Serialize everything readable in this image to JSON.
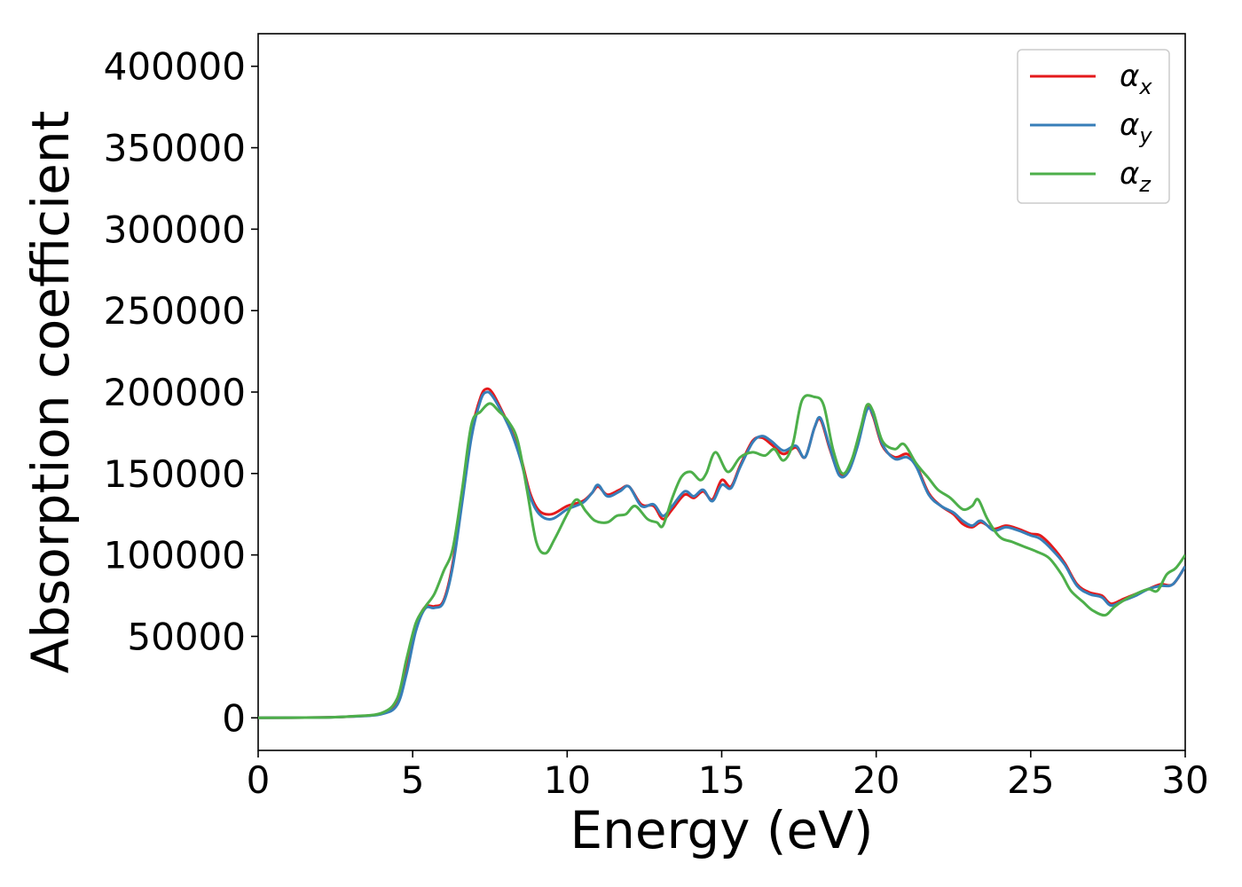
{
  "chart_data": {
    "type": "line",
    "title": "",
    "xlabel": "Energy (eV)",
    "ylabel": "Absorption coefficient",
    "xlim": [
      0,
      30
    ],
    "ylim": [
      -20000,
      420000
    ],
    "xticks": [
      0,
      5,
      10,
      15,
      20,
      25,
      30
    ],
    "yticks": [
      0,
      50000,
      100000,
      150000,
      200000,
      250000,
      300000,
      350000,
      400000
    ],
    "grid": false,
    "legend_position": "top-right",
    "series": [
      {
        "name": "α",
        "subscript": "x",
        "color": "#e41a1c",
        "points": [
          [
            0,
            0
          ],
          [
            2,
            200
          ],
          [
            3,
            800
          ],
          [
            4,
            2500
          ],
          [
            4.5,
            9000
          ],
          [
            4.8,
            30000
          ],
          [
            5.1,
            56000
          ],
          [
            5.4,
            68000
          ],
          [
            5.7,
            68500
          ],
          [
            6.0,
            72000
          ],
          [
            6.3,
            95000
          ],
          [
            6.6,
            135000
          ],
          [
            6.9,
            175000
          ],
          [
            7.2,
            197000
          ],
          [
            7.4,
            202000
          ],
          [
            7.6,
            199000
          ],
          [
            7.9,
            188000
          ],
          [
            8.2,
            176000
          ],
          [
            8.5,
            160000
          ],
          [
            8.8,
            138000
          ],
          [
            9.1,
            127000
          ],
          [
            9.5,
            125000
          ],
          [
            10.0,
            130000
          ],
          [
            10.5,
            133000
          ],
          [
            10.8,
            138000
          ],
          [
            11.0,
            142000
          ],
          [
            11.3,
            137000
          ],
          [
            11.7,
            140000
          ],
          [
            12.0,
            142000
          ],
          [
            12.4,
            131000
          ],
          [
            12.8,
            130000
          ],
          [
            13.1,
            122000
          ],
          [
            13.4,
            128000
          ],
          [
            13.8,
            137000
          ],
          [
            14.1,
            135000
          ],
          [
            14.4,
            139000
          ],
          [
            14.7,
            134000
          ],
          [
            15.0,
            146000
          ],
          [
            15.3,
            142000
          ],
          [
            15.6,
            155000
          ],
          [
            16.0,
            170000
          ],
          [
            16.3,
            172000
          ],
          [
            16.6,
            168000
          ],
          [
            17.0,
            162000
          ],
          [
            17.4,
            166000
          ],
          [
            17.7,
            160000
          ],
          [
            18.0,
            178000
          ],
          [
            18.2,
            183000
          ],
          [
            18.5,
            165000
          ],
          [
            18.8,
            150000
          ],
          [
            19.1,
            152000
          ],
          [
            19.4,
            168000
          ],
          [
            19.7,
            190000
          ],
          [
            19.9,
            185000
          ],
          [
            20.2,
            167000
          ],
          [
            20.6,
            160000
          ],
          [
            21.0,
            162000
          ],
          [
            21.3,
            155000
          ],
          [
            21.7,
            138000
          ],
          [
            22.1,
            130000
          ],
          [
            22.5,
            125000
          ],
          [
            22.8,
            119000
          ],
          [
            23.1,
            117000
          ],
          [
            23.4,
            120000
          ],
          [
            23.8,
            116000
          ],
          [
            24.2,
            118000
          ],
          [
            24.6,
            116000
          ],
          [
            25.0,
            113000
          ],
          [
            25.3,
            112000
          ],
          [
            25.7,
            105000
          ],
          [
            26.1,
            95000
          ],
          [
            26.5,
            82000
          ],
          [
            26.9,
            77000
          ],
          [
            27.3,
            75000
          ],
          [
            27.6,
            70000
          ],
          [
            28.0,
            73000
          ],
          [
            28.4,
            76000
          ],
          [
            28.8,
            79000
          ],
          [
            29.2,
            82000
          ],
          [
            29.6,
            82000
          ],
          [
            30.0,
            93000
          ]
        ]
      },
      {
        "name": "α",
        "subscript": "y",
        "color": "#377eb8",
        "points": [
          [
            0,
            0
          ],
          [
            2,
            200
          ],
          [
            3,
            800
          ],
          [
            4,
            2300
          ],
          [
            4.5,
            8000
          ],
          [
            4.8,
            27000
          ],
          [
            5.1,
            53000
          ],
          [
            5.4,
            67000
          ],
          [
            5.7,
            67500
          ],
          [
            6.0,
            71000
          ],
          [
            6.3,
            93000
          ],
          [
            6.6,
            132000
          ],
          [
            6.9,
            172000
          ],
          [
            7.2,
            195000
          ],
          [
            7.4,
            200000
          ],
          [
            7.6,
            197000
          ],
          [
            7.9,
            187000
          ],
          [
            8.2,
            175000
          ],
          [
            8.5,
            158000
          ],
          [
            8.8,
            136000
          ],
          [
            9.1,
            125000
          ],
          [
            9.5,
            122000
          ],
          [
            10.0,
            128000
          ],
          [
            10.5,
            132000
          ],
          [
            10.8,
            138000
          ],
          [
            11.0,
            143000
          ],
          [
            11.3,
            136000
          ],
          [
            11.7,
            139000
          ],
          [
            12.0,
            142000
          ],
          [
            12.4,
            130000
          ],
          [
            12.8,
            131000
          ],
          [
            13.1,
            124000
          ],
          [
            13.4,
            130000
          ],
          [
            13.8,
            139000
          ],
          [
            14.1,
            136000
          ],
          [
            14.4,
            140000
          ],
          [
            14.7,
            133000
          ],
          [
            15.0,
            143000
          ],
          [
            15.3,
            141000
          ],
          [
            15.6,
            154000
          ],
          [
            16.0,
            169000
          ],
          [
            16.3,
            173000
          ],
          [
            16.6,
            170000
          ],
          [
            17.0,
            164000
          ],
          [
            17.4,
            167000
          ],
          [
            17.7,
            160000
          ],
          [
            18.0,
            178000
          ],
          [
            18.2,
            184000
          ],
          [
            18.5,
            166000
          ],
          [
            18.8,
            149000
          ],
          [
            19.1,
            151000
          ],
          [
            19.4,
            167000
          ],
          [
            19.7,
            189000
          ],
          [
            19.9,
            186000
          ],
          [
            20.2,
            168000
          ],
          [
            20.6,
            159000
          ],
          [
            21.0,
            160000
          ],
          [
            21.3,
            154000
          ],
          [
            21.7,
            137000
          ],
          [
            22.1,
            130000
          ],
          [
            22.5,
            126000
          ],
          [
            22.8,
            121000
          ],
          [
            23.1,
            118000
          ],
          [
            23.4,
            121000
          ],
          [
            23.8,
            115000
          ],
          [
            24.2,
            117000
          ],
          [
            24.6,
            115000
          ],
          [
            25.0,
            112000
          ],
          [
            25.3,
            110000
          ],
          [
            25.7,
            103000
          ],
          [
            26.1,
            94000
          ],
          [
            26.5,
            81000
          ],
          [
            26.9,
            76000
          ],
          [
            27.3,
            74000
          ],
          [
            27.6,
            69000
          ],
          [
            28.0,
            72000
          ],
          [
            28.4,
            75000
          ],
          [
            28.8,
            79000
          ],
          [
            29.2,
            81000
          ],
          [
            29.6,
            82000
          ],
          [
            30.0,
            93000
          ]
        ]
      },
      {
        "name": "α",
        "subscript": "z",
        "color": "#4daf4a",
        "points": [
          [
            0,
            0
          ],
          [
            2,
            200
          ],
          [
            3,
            900
          ],
          [
            4,
            3000
          ],
          [
            4.5,
            12000
          ],
          [
            4.8,
            36000
          ],
          [
            5.1,
            58000
          ],
          [
            5.4,
            68000
          ],
          [
            5.7,
            76000
          ],
          [
            6.0,
            90000
          ],
          [
            6.3,
            104000
          ],
          [
            6.6,
            140000
          ],
          [
            6.9,
            180000
          ],
          [
            7.2,
            188000
          ],
          [
            7.5,
            193000
          ],
          [
            7.8,
            188000
          ],
          [
            8.1,
            182000
          ],
          [
            8.4,
            170000
          ],
          [
            8.7,
            140000
          ],
          [
            9.0,
            108000
          ],
          [
            9.3,
            101000
          ],
          [
            9.6,
            110000
          ],
          [
            10.0,
            125000
          ],
          [
            10.3,
            134000
          ],
          [
            10.6,
            127000
          ],
          [
            10.9,
            121000
          ],
          [
            11.3,
            120000
          ],
          [
            11.6,
            124000
          ],
          [
            11.9,
            125000
          ],
          [
            12.2,
            130000
          ],
          [
            12.6,
            122000
          ],
          [
            12.9,
            120000
          ],
          [
            13.1,
            118000
          ],
          [
            13.4,
            135000
          ],
          [
            13.7,
            148000
          ],
          [
            14.0,
            151000
          ],
          [
            14.3,
            146000
          ],
          [
            14.5,
            150000
          ],
          [
            14.8,
            163000
          ],
          [
            15.2,
            151000
          ],
          [
            15.6,
            160000
          ],
          [
            16.0,
            163000
          ],
          [
            16.4,
            161000
          ],
          [
            16.7,
            165000
          ],
          [
            17.0,
            158000
          ],
          [
            17.3,
            168000
          ],
          [
            17.6,
            195000
          ],
          [
            18.0,
            197000
          ],
          [
            18.3,
            192000
          ],
          [
            18.6,
            165000
          ],
          [
            18.9,
            150000
          ],
          [
            19.2,
            158000
          ],
          [
            19.5,
            178000
          ],
          [
            19.7,
            192000
          ],
          [
            19.9,
            188000
          ],
          [
            20.2,
            170000
          ],
          [
            20.6,
            165000
          ],
          [
            20.9,
            168000
          ],
          [
            21.3,
            156000
          ],
          [
            21.7,
            147000
          ],
          [
            22.0,
            140000
          ],
          [
            22.4,
            135000
          ],
          [
            22.8,
            128000
          ],
          [
            23.1,
            130000
          ],
          [
            23.3,
            134000
          ],
          [
            23.6,
            122000
          ],
          [
            24.0,
            111000
          ],
          [
            24.4,
            108000
          ],
          [
            24.8,
            105000
          ],
          [
            25.2,
            102000
          ],
          [
            25.6,
            98000
          ],
          [
            26.0,
            88000
          ],
          [
            26.3,
            78000
          ],
          [
            26.7,
            71000
          ],
          [
            27.0,
            66000
          ],
          [
            27.4,
            63000
          ],
          [
            27.7,
            68000
          ],
          [
            28.0,
            72000
          ],
          [
            28.4,
            76000
          ],
          [
            28.8,
            79000
          ],
          [
            29.1,
            78000
          ],
          [
            29.4,
            88000
          ],
          [
            29.7,
            92000
          ],
          [
            30.0,
            100000
          ]
        ]
      }
    ]
  }
}
